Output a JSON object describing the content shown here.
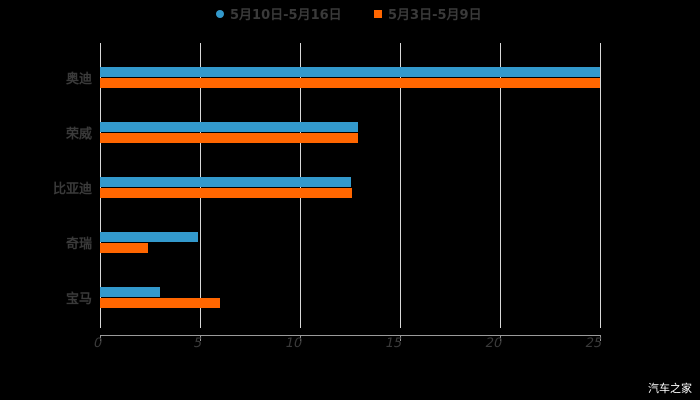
{
  "legend": [
    {
      "label": "5月10日-5月16日",
      "color": "#3399CC",
      "marker": "circle"
    },
    {
      "label": "5月3日-5月9日",
      "color": "#FF6600",
      "marker": "square"
    }
  ],
  "watermark": "汽车之家",
  "x_ticks": [
    "0",
    "5",
    "10",
    "15",
    "20",
    "25"
  ],
  "chart_data": {
    "type": "bar",
    "orientation": "horizontal",
    "title": "",
    "categories": [
      "奥迪",
      "荣威",
      "比亚迪",
      "奇瑞",
      "宝马"
    ],
    "series": [
      {
        "name": "5月10日-5月16日",
        "color": "#3399CC",
        "values": [
          25,
          12.9,
          12.55,
          4.9,
          3.0
        ]
      },
      {
        "name": "5月3日-5月9日",
        "color": "#FF6600",
        "values": [
          25,
          12.9,
          12.6,
          2.4,
          6.0
        ]
      }
    ],
    "xlabel": "",
    "ylabel": "",
    "xlim": [
      0,
      25
    ],
    "x_ticks": [
      0,
      5,
      10,
      15,
      20,
      25
    ],
    "grid": "vertical",
    "legend_position": "top"
  }
}
